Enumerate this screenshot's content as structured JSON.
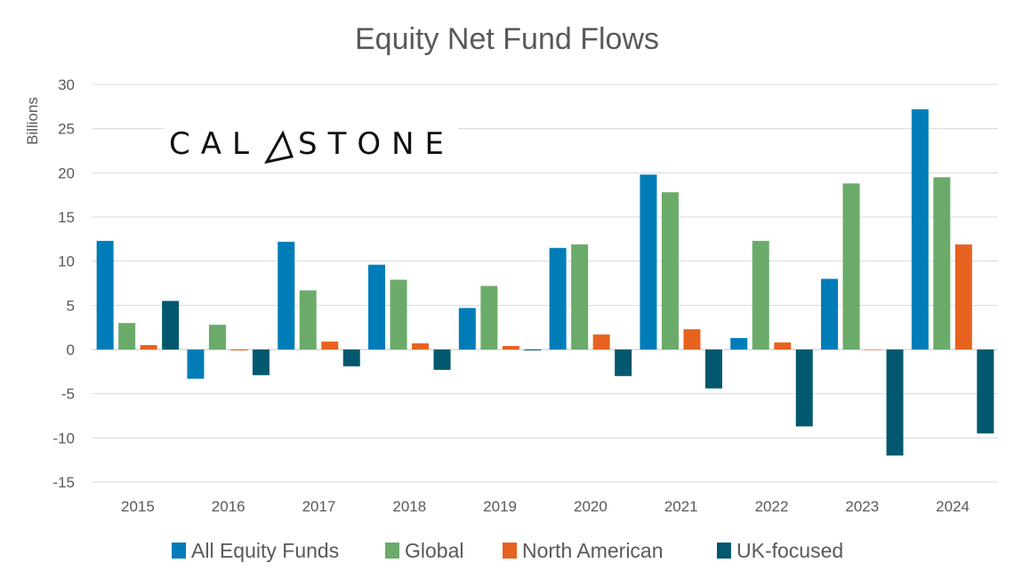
{
  "chart_data": {
    "type": "bar",
    "title": "Equity Net Fund Flows",
    "xlabel": "",
    "ylabel": "Billions",
    "ylim": [
      -15,
      30
    ],
    "yticks": [
      30,
      25,
      20,
      15,
      10,
      5,
      0,
      -5,
      -10,
      -15
    ],
    "grid": true,
    "legend_position": "bottom",
    "categories": [
      "2015",
      "2016",
      "2017",
      "2018",
      "2019",
      "2020",
      "2021",
      "2022",
      "2023",
      "2024"
    ],
    "series": [
      {
        "name": "All Equity Funds",
        "color": "#007DB8",
        "values": [
          12.3,
          -3.3,
          12.2,
          9.6,
          4.7,
          11.5,
          19.8,
          1.3,
          8.0,
          27.2
        ]
      },
      {
        "name": "Global",
        "color": "#6AAB6A",
        "values": [
          3.0,
          2.8,
          6.7,
          7.9,
          7.2,
          11.9,
          17.8,
          12.3,
          18.8,
          19.5
        ]
      },
      {
        "name": "North American",
        "color": "#E8621F",
        "values": [
          0.5,
          -0.1,
          0.9,
          0.7,
          0.4,
          1.7,
          2.3,
          0.8,
          0.0,
          11.9
        ]
      },
      {
        "name": "UK-focused",
        "color": "#02586E",
        "values": [
          5.5,
          -2.9,
          -1.9,
          -2.3,
          -0.1,
          -3.0,
          -4.4,
          -8.7,
          -12.0,
          -9.5
        ]
      }
    ]
  },
  "logo": {
    "text": "CALASTONE"
  }
}
